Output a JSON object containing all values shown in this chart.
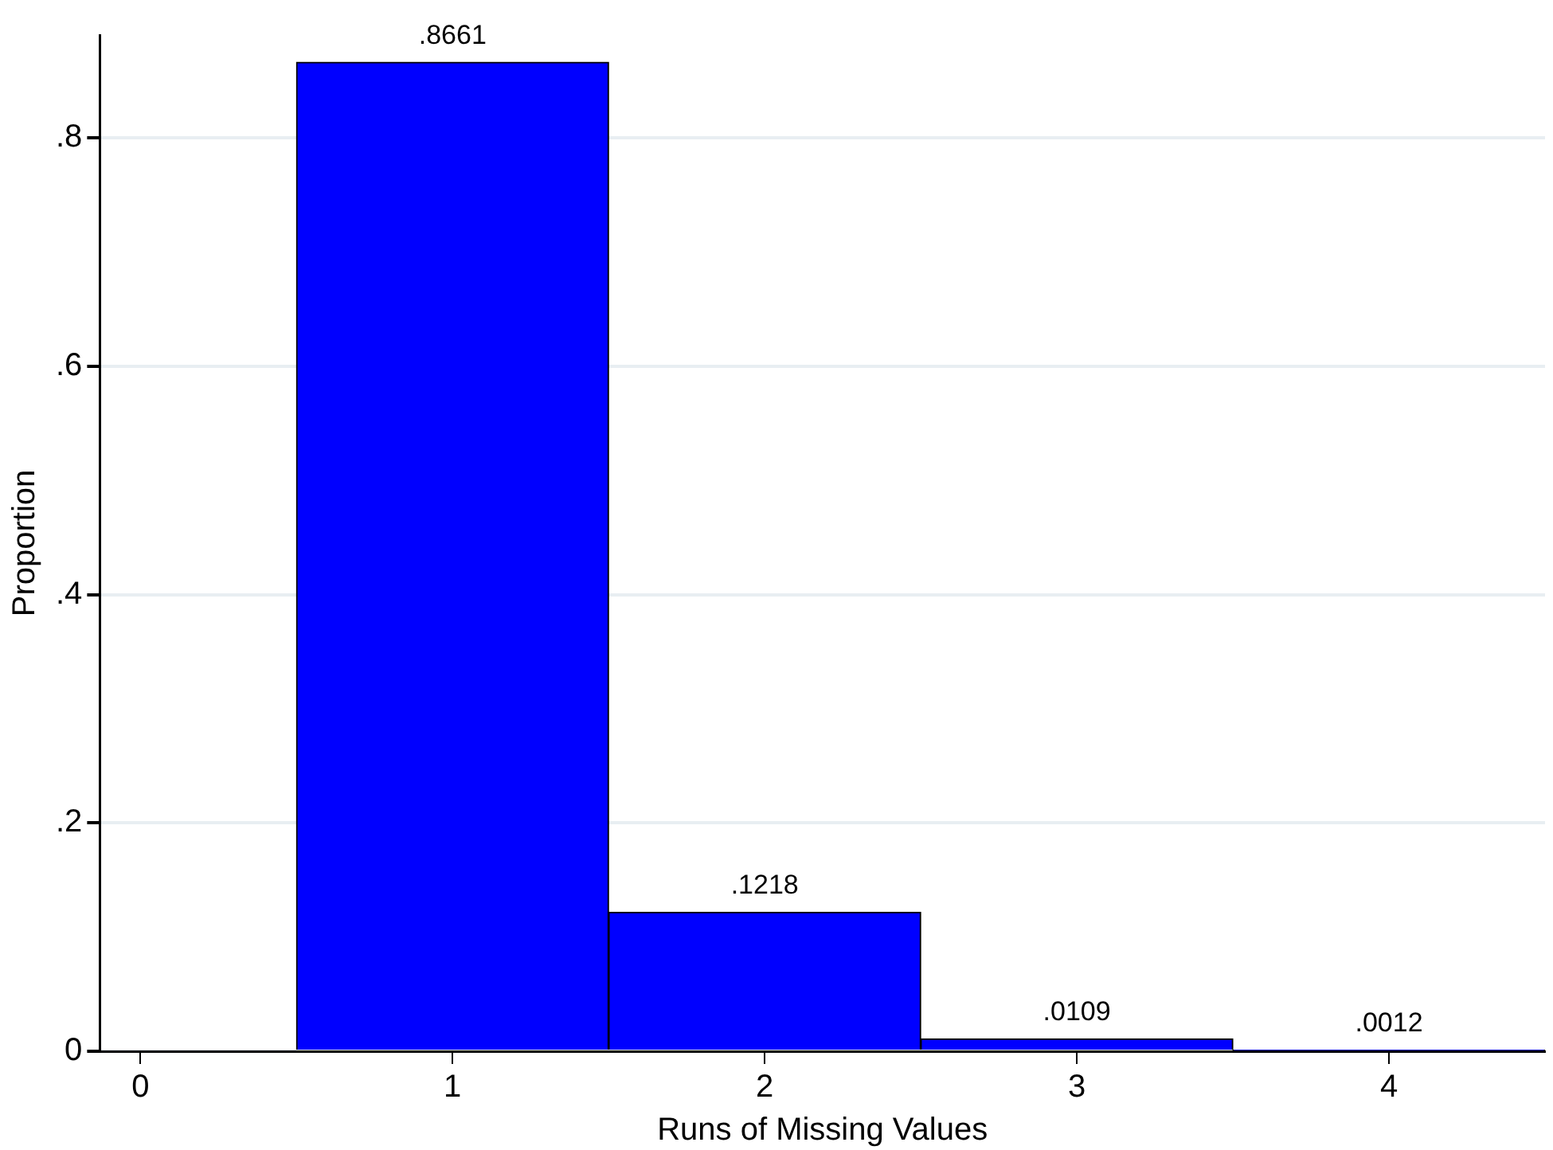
{
  "chart_data": {
    "type": "histogram",
    "xlabel": "Runs of Missing Values",
    "ylabel": "Proportion",
    "bins": [
      0.5,
      1.5,
      2.5,
      3.5,
      4.5
    ],
    "values": [
      0.8661,
      0.1218,
      0.0109,
      0.0012
    ],
    "color": "#0000ff",
    "value_labels": [
      ".8661",
      ".1218",
      ".0109",
      ".0012"
    ],
    "xlim": [
      -0.13,
      4.5
    ],
    "xticks": [
      0,
      1,
      2,
      3,
      4
    ],
    "ylim": [
      0,
      0.89
    ],
    "yticks": [
      {
        "value": 0,
        "label": "0"
      },
      {
        "value": 0.2,
        "label": ".2"
      },
      {
        "value": 0.4,
        "label": ".4"
      },
      {
        "value": 0.6,
        "label": ".6"
      },
      {
        "value": 0.8,
        "label": ".8"
      }
    ],
    "grid": "y",
    "legend": false
  }
}
